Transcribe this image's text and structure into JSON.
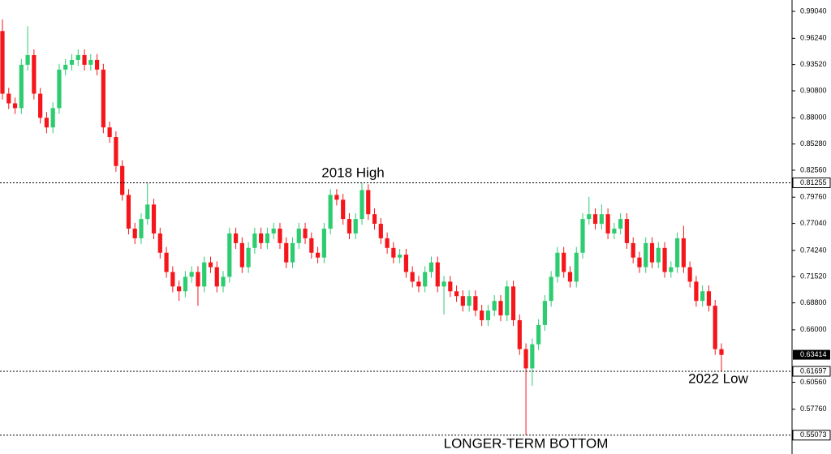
{
  "chart_data": {
    "type": "candlestick",
    "open": [
      0.97,
      0.905,
      0.895,
      0.89,
      0.935,
      0.945,
      0.905,
      0.88,
      0.87,
      0.89,
      0.93,
      0.935,
      0.94,
      0.945,
      0.935,
      0.94,
      0.93,
      0.87,
      0.86,
      0.83,
      0.8,
      0.765,
      0.755,
      0.775,
      0.79,
      0.76,
      0.74,
      0.72,
      0.705,
      0.7,
      0.715,
      0.72,
      0.705,
      0.73,
      0.725,
      0.705,
      0.715,
      0.76,
      0.75,
      0.725,
      0.745,
      0.76,
      0.75,
      0.76,
      0.765,
      0.75,
      0.73,
      0.75,
      0.765,
      0.755,
      0.74,
      0.735,
      0.765,
      0.8,
      0.795,
      0.775,
      0.76,
      0.775,
      0.805,
      0.78,
      0.77,
      0.755,
      0.745,
      0.735,
      0.738,
      0.72,
      0.71,
      0.705,
      0.72,
      0.73,
      0.705,
      0.71,
      0.7,
      0.695,
      0.685,
      0.695,
      0.68,
      0.67,
      0.68,
      0.69,
      0.675,
      0.705,
      0.67,
      0.64,
      0.62,
      0.645,
      0.665,
      0.69,
      0.715,
      0.74,
      0.72,
      0.71,
      0.74,
      0.775,
      0.78,
      0.77,
      0.78,
      0.76,
      0.765,
      0.775,
      0.75,
      0.735,
      0.725,
      0.75,
      0.73,
      0.745,
      0.72,
      0.725,
      0.755,
      0.725,
      0.71,
      0.69,
      0.7,
      0.685,
      0.64
    ],
    "high": [
      0.982,
      0.911,
      0.901,
      0.941,
      0.975,
      0.951,
      0.911,
      0.886,
      0.896,
      0.936,
      0.941,
      0.946,
      0.951,
      0.951,
      0.946,
      0.946,
      0.936,
      0.876,
      0.866,
      0.836,
      0.806,
      0.771,
      0.781,
      0.812,
      0.796,
      0.766,
      0.746,
      0.726,
      0.711,
      0.721,
      0.726,
      0.726,
      0.736,
      0.736,
      0.731,
      0.721,
      0.766,
      0.766,
      0.756,
      0.751,
      0.766,
      0.766,
      0.766,
      0.771,
      0.771,
      0.756,
      0.756,
      0.771,
      0.771,
      0.761,
      0.746,
      0.771,
      0.806,
      0.806,
      0.801,
      0.781,
      0.781,
      0.8125,
      0.811,
      0.786,
      0.776,
      0.761,
      0.751,
      0.744,
      0.744,
      0.726,
      0.716,
      0.726,
      0.736,
      0.736,
      0.716,
      0.716,
      0.706,
      0.701,
      0.701,
      0.701,
      0.686,
      0.686,
      0.696,
      0.696,
      0.711,
      0.711,
      0.676,
      0.646,
      0.651,
      0.671,
      0.696,
      0.721,
      0.746,
      0.746,
      0.726,
      0.746,
      0.781,
      0.798,
      0.786,
      0.79,
      0.786,
      0.771,
      0.781,
      0.781,
      0.756,
      0.741,
      0.756,
      0.756,
      0.751,
      0.751,
      0.731,
      0.761,
      0.768,
      0.731,
      0.716,
      0.706,
      0.706,
      0.691,
      0.646
    ],
    "low": [
      0.899,
      0.889,
      0.884,
      0.884,
      0.929,
      0.899,
      0.874,
      0.864,
      0.864,
      0.884,
      0.924,
      0.929,
      0.934,
      0.929,
      0.929,
      0.924,
      0.864,
      0.854,
      0.824,
      0.794,
      0.759,
      0.749,
      0.749,
      0.769,
      0.754,
      0.734,
      0.714,
      0.699,
      0.69,
      0.694,
      0.709,
      0.685,
      0.699,
      0.719,
      0.699,
      0.699,
      0.709,
      0.744,
      0.719,
      0.719,
      0.739,
      0.744,
      0.744,
      0.754,
      0.744,
      0.724,
      0.724,
      0.744,
      0.749,
      0.734,
      0.729,
      0.729,
      0.759,
      0.789,
      0.769,
      0.754,
      0.754,
      0.769,
      0.774,
      0.764,
      0.749,
      0.739,
      0.729,
      0.729,
      0.714,
      0.704,
      0.699,
      0.699,
      0.714,
      0.699,
      0.676,
      0.694,
      0.689,
      0.679,
      0.679,
      0.674,
      0.664,
      0.664,
      0.674,
      0.669,
      0.669,
      0.664,
      0.634,
      0.5507,
      0.602,
      0.639,
      0.659,
      0.684,
      0.709,
      0.714,
      0.704,
      0.704,
      0.734,
      0.769,
      0.764,
      0.764,
      0.754,
      0.754,
      0.759,
      0.744,
      0.729,
      0.719,
      0.719,
      0.724,
      0.724,
      0.714,
      0.714,
      0.719,
      0.719,
      0.704,
      0.684,
      0.684,
      0.679,
      0.634,
      0.61697
    ],
    "close": [
      0.905,
      0.895,
      0.89,
      0.935,
      0.945,
      0.905,
      0.88,
      0.87,
      0.89,
      0.93,
      0.935,
      0.94,
      0.945,
      0.935,
      0.94,
      0.93,
      0.87,
      0.86,
      0.83,
      0.8,
      0.765,
      0.755,
      0.775,
      0.79,
      0.76,
      0.74,
      0.72,
      0.705,
      0.7,
      0.715,
      0.72,
      0.705,
      0.73,
      0.725,
      0.705,
      0.715,
      0.76,
      0.75,
      0.725,
      0.745,
      0.76,
      0.75,
      0.76,
      0.765,
      0.75,
      0.73,
      0.75,
      0.765,
      0.755,
      0.74,
      0.735,
      0.765,
      0.8,
      0.795,
      0.775,
      0.76,
      0.775,
      0.805,
      0.78,
      0.77,
      0.755,
      0.745,
      0.735,
      0.738,
      0.72,
      0.71,
      0.705,
      0.72,
      0.73,
      0.705,
      0.71,
      0.7,
      0.695,
      0.685,
      0.695,
      0.68,
      0.67,
      0.68,
      0.69,
      0.675,
      0.705,
      0.67,
      0.64,
      0.62,
      0.645,
      0.665,
      0.69,
      0.715,
      0.74,
      0.72,
      0.71,
      0.74,
      0.775,
      0.78,
      0.77,
      0.78,
      0.76,
      0.765,
      0.775,
      0.75,
      0.735,
      0.725,
      0.75,
      0.73,
      0.745,
      0.72,
      0.725,
      0.755,
      0.725,
      0.71,
      0.69,
      0.7,
      0.685,
      0.64,
      0.634
    ],
    "up_color": "#2ecc71",
    "down_color": "#f5161b",
    "ylim": [
      0.5438,
      1.0022
    ],
    "yticks": [
      {
        "value": 0.9904,
        "label": "0.99040"
      },
      {
        "value": 0.9624,
        "label": "0.96240"
      },
      {
        "value": 0.9352,
        "label": "0.93520"
      },
      {
        "value": 0.908,
        "label": "0.90800"
      },
      {
        "value": 0.88,
        "label": "0.88000"
      },
      {
        "value": 0.8528,
        "label": "0.85280"
      },
      {
        "value": 0.8256,
        "label": "0.82560"
      },
      {
        "value": 0.7976,
        "label": "0.79760"
      },
      {
        "value": 0.7704,
        "label": "0.77040"
      },
      {
        "value": 0.7424,
        "label": "0.74240"
      },
      {
        "value": 0.7152,
        "label": "0.71520"
      },
      {
        "value": 0.688,
        "label": "0.68800"
      },
      {
        "value": 0.66,
        "label": "0.66000"
      },
      {
        "value": 0.6056,
        "label": "0.60560"
      },
      {
        "value": 0.5776,
        "label": "0.57760"
      }
    ],
    "levels": [
      {
        "value": 0.81255,
        "label": "0.81255"
      },
      {
        "value": 0.61697,
        "label": "0.61697"
      },
      {
        "value": 0.55073,
        "label": "0.55073"
      }
    ],
    "last_price": {
      "value": 0.63414,
      "label": "0.63414"
    },
    "annotations": [
      "2018 High",
      "2022 Low",
      "LONGER-TERM BOTTOM"
    ]
  }
}
